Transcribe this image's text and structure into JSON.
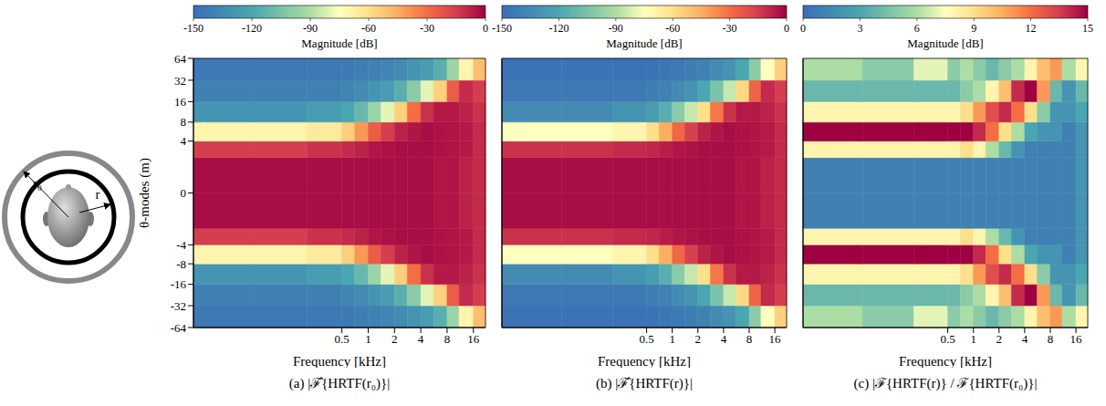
{
  "diagram": {
    "labels": [
      "r₀",
      "r"
    ]
  },
  "chart_data": [
    {
      "type": "heatmap",
      "caption": "(a) |ℱ̂{HRTF(r₀)}|",
      "x_label": "Frequency [kHz]",
      "y_label": "θ-modes (m)",
      "log": "x",
      "tick_labels": true,
      "xlim": [
        0.01,
        22
      ],
      "xticks": [
        0.5,
        1,
        2,
        4,
        8,
        16
      ],
      "ylim": [
        -64,
        64
      ],
      "yticks": [
        -64,
        -32,
        -16,
        -8,
        -4,
        0,
        4,
        8,
        16,
        32,
        64
      ],
      "x_edges": [
        0.01,
        0.05,
        0.2,
        0.5,
        0.7,
        1,
        1.4,
        2,
        2.8,
        4,
        5.6,
        8,
        11,
        16,
        22
      ],
      "y_edges": [
        -64,
        -32,
        -16,
        -8,
        -4,
        -2,
        0,
        2,
        4,
        8,
        16,
        32,
        64
      ],
      "cells": [
        [
          -145,
          -145,
          -145,
          -145,
          -142,
          -140,
          -138,
          -135,
          -130,
          -125,
          -115,
          -95,
          -70,
          -50
        ],
        [
          -140,
          -140,
          -140,
          -138,
          -135,
          -130,
          -125,
          -115,
          -100,
          -80,
          -55,
          -25,
          -10,
          -15
        ],
        [
          -130,
          -130,
          -125,
          -120,
          -110,
          -95,
          -80,
          -55,
          -30,
          -12,
          -6,
          -6,
          -8,
          -12
        ],
        [
          -70,
          -70,
          -65,
          -55,
          -40,
          -25,
          -15,
          -8,
          -5,
          -3,
          -4,
          -5,
          -6,
          -10
        ],
        [
          -15,
          -15,
          -12,
          -10,
          -8,
          -5,
          -4,
          -3,
          -3,
          -3,
          -4,
          -5,
          -6,
          -10
        ],
        [
          -3,
          -3,
          -3,
          -3,
          -3,
          -3,
          -3,
          -3,
          -3,
          -3,
          -5,
          -5,
          -8,
          -10
        ],
        [
          -3,
          -3,
          -3,
          -3,
          -3,
          -3,
          -3,
          -3,
          -3,
          -3,
          -5,
          -5,
          -8,
          -10
        ],
        [
          -15,
          -15,
          -12,
          -10,
          -8,
          -5,
          -4,
          -3,
          -3,
          -3,
          -4,
          -5,
          -6,
          -10
        ],
        [
          -70,
          -70,
          -65,
          -55,
          -40,
          -25,
          -15,
          -8,
          -5,
          -3,
          -4,
          -5,
          -6,
          -10
        ],
        [
          -130,
          -130,
          -125,
          -120,
          -110,
          -95,
          -80,
          -55,
          -30,
          -12,
          -6,
          -6,
          -8,
          -12
        ],
        [
          -140,
          -140,
          -140,
          -138,
          -135,
          -130,
          -125,
          -115,
          -100,
          -80,
          -55,
          -25,
          -10,
          -15
        ],
        [
          -145,
          -145,
          -145,
          -145,
          -142,
          -140,
          -138,
          -135,
          -130,
          -125,
          -115,
          -95,
          -70,
          -50
        ]
      ],
      "colorbar": {
        "label": "Magnitude [dB]",
        "range": [
          -150,
          0
        ],
        "ticks": [
          -150,
          -120,
          -90,
          -60,
          -30,
          0
        ]
      }
    },
    {
      "type": "heatmap",
      "caption": "(b) |ℱ̂{HRTF(r)}|",
      "x_label": "Frequency [kHz]",
      "log": "x",
      "tick_labels": "x",
      "xlim": [
        0.01,
        22
      ],
      "xticks": [
        0.5,
        1,
        2,
        4,
        8,
        16
      ],
      "ylim": [
        -64,
        64
      ],
      "yticks": [
        -64,
        -32,
        -16,
        -8,
        -4,
        0,
        4,
        8,
        16,
        32,
        64
      ],
      "x_edges": [
        0.01,
        0.05,
        0.2,
        0.5,
        0.7,
        1,
        1.4,
        2,
        2.8,
        4,
        5.6,
        8,
        11,
        16,
        22
      ],
      "y_edges": [
        -64,
        -32,
        -16,
        -8,
        -4,
        -2,
        0,
        2,
        4,
        8,
        16,
        32,
        64
      ],
      "cells": [
        [
          -148,
          -148,
          -148,
          -148,
          -146,
          -145,
          -142,
          -140,
          -135,
          -130,
          -120,
          -100,
          -75,
          -55
        ],
        [
          -145,
          -145,
          -145,
          -142,
          -140,
          -135,
          -130,
          -120,
          -105,
          -85,
          -58,
          -27,
          -10,
          -15
        ],
        [
          -135,
          -135,
          -130,
          -125,
          -115,
          -100,
          -85,
          -60,
          -32,
          -12,
          -6,
          -6,
          -8,
          -12
        ],
        [
          -75,
          -75,
          -70,
          -60,
          -45,
          -28,
          -16,
          -8,
          -5,
          -3,
          -4,
          -5,
          -6,
          -10
        ],
        [
          -12,
          -12,
          -10,
          -9,
          -7,
          -5,
          -4,
          -3,
          -3,
          -3,
          -4,
          -5,
          -6,
          -10
        ],
        [
          -3,
          -3,
          -3,
          -3,
          -3,
          -3,
          -3,
          -3,
          -3,
          -3,
          -5,
          -5,
          -8,
          -10
        ],
        [
          -3,
          -3,
          -3,
          -3,
          -3,
          -3,
          -3,
          -3,
          -3,
          -3,
          -5,
          -5,
          -8,
          -10
        ],
        [
          -12,
          -12,
          -10,
          -9,
          -7,
          -5,
          -4,
          -3,
          -3,
          -3,
          -4,
          -5,
          -6,
          -10
        ],
        [
          -75,
          -75,
          -70,
          -60,
          -45,
          -28,
          -16,
          -8,
          -5,
          -3,
          -4,
          -5,
          -6,
          -10
        ],
        [
          -135,
          -135,
          -130,
          -125,
          -115,
          -100,
          -85,
          -60,
          -32,
          -12,
          -6,
          -6,
          -8,
          -12
        ],
        [
          -145,
          -145,
          -145,
          -142,
          -140,
          -135,
          -130,
          -120,
          -105,
          -85,
          -58,
          -27,
          -10,
          -15
        ],
        [
          -148,
          -148,
          -148,
          -148,
          -146,
          -145,
          -142,
          -140,
          -135,
          -130,
          -120,
          -100,
          -75,
          -55
        ]
      ],
      "colorbar": {
        "label": "Magnitude [dB]",
        "range": [
          -150,
          0
        ],
        "ticks": [
          -150,
          -120,
          -90,
          -60,
          -30,
          0
        ]
      }
    },
    {
      "type": "heatmap",
      "caption": "(c) |ℱ{HRTF(r)} / ℱ{HRTF(r₀)}|",
      "x_label": "Frequency [kHz]",
      "log": "x",
      "tick_labels": "x",
      "xlim": [
        0.01,
        22
      ],
      "xticks": [
        0.5,
        1,
        2,
        4,
        8,
        16
      ],
      "ylim": [
        -64,
        64
      ],
      "yticks": [
        -64,
        -32,
        -16,
        -8,
        -4,
        0,
        4,
        8,
        16,
        32,
        64
      ],
      "x_edges": [
        0.01,
        0.05,
        0.2,
        0.5,
        0.7,
        1,
        1.4,
        2,
        2.8,
        4,
        5.6,
        8,
        11,
        16,
        22
      ],
      "y_edges": [
        -64,
        -32,
        -16,
        -8,
        -4,
        -2,
        0,
        2,
        4,
        8,
        16,
        32,
        64
      ],
      "cells": [
        [
          6,
          5,
          7,
          5,
          6,
          5,
          4,
          5,
          6,
          8,
          10,
          11,
          6,
          8
        ],
        [
          4,
          4,
          4,
          4,
          5,
          6,
          8,
          10,
          14,
          15,
          11,
          4,
          2,
          4
        ],
        [
          8,
          8,
          8,
          8,
          9,
          11,
          13,
          14,
          12,
          9,
          5,
          2,
          2,
          3
        ],
        [
          15,
          15,
          15,
          15,
          15,
          14,
          12,
          9,
          6,
          3,
          2,
          2,
          1,
          2
        ],
        [
          8,
          8,
          8,
          8,
          9,
          8,
          6,
          4,
          2,
          1,
          1,
          1,
          1,
          2
        ],
        [
          1,
          1,
          1,
          1,
          1,
          1,
          1,
          1,
          1,
          1,
          1,
          1,
          1,
          2
        ],
        [
          1,
          1,
          1,
          1,
          1,
          1,
          1,
          1,
          1,
          1,
          1,
          1,
          1,
          2
        ],
        [
          8,
          8,
          8,
          8,
          9,
          8,
          6,
          4,
          2,
          1,
          1,
          1,
          1,
          2
        ],
        [
          15,
          15,
          15,
          15,
          15,
          14,
          12,
          9,
          6,
          3,
          2,
          2,
          1,
          2
        ],
        [
          8,
          8,
          8,
          8,
          9,
          11,
          13,
          14,
          12,
          9,
          5,
          2,
          2,
          3
        ],
        [
          4,
          4,
          4,
          4,
          5,
          6,
          8,
          10,
          14,
          15,
          11,
          4,
          2,
          4
        ],
        [
          6,
          5,
          7,
          5,
          6,
          5,
          4,
          5,
          6,
          8,
          10,
          11,
          6,
          8
        ]
      ],
      "colorbar": {
        "label": "Magnitude [dB]",
        "range": [
          0,
          15
        ],
        "ticks": [
          0,
          3,
          6,
          9,
          12,
          15
        ]
      }
    }
  ]
}
